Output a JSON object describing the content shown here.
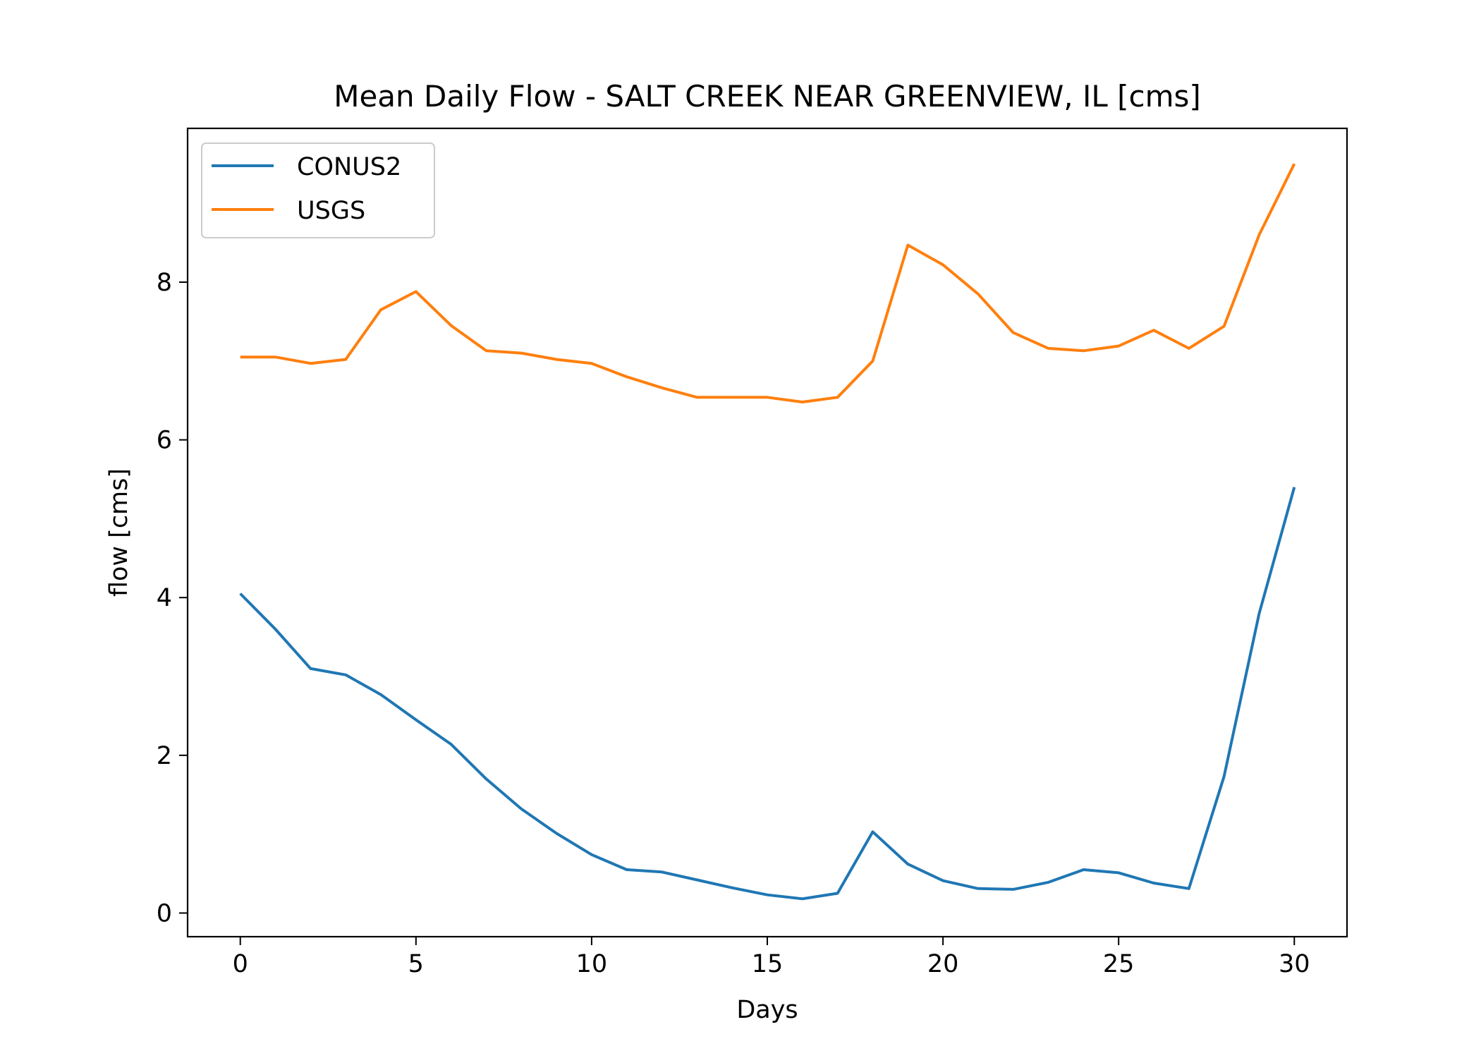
{
  "chart_data": {
    "type": "line",
    "title": "Mean Daily Flow - SALT CREEK NEAR GREENVIEW, IL [cms]",
    "xlabel": "Days",
    "ylabel": "flow [cms]",
    "xlim": [
      -1.5,
      31.5
    ],
    "ylim": [
      -0.3,
      9.95
    ],
    "xticks": [
      0,
      5,
      10,
      15,
      20,
      25,
      30
    ],
    "yticks": [
      0,
      2,
      4,
      6,
      8
    ],
    "grid": false,
    "legend_position": "upper-left",
    "x": [
      0,
      1,
      2,
      3,
      4,
      5,
      6,
      7,
      8,
      9,
      10,
      11,
      12,
      13,
      14,
      15,
      16,
      17,
      18,
      19,
      20,
      21,
      22,
      23,
      24,
      25,
      26,
      27,
      28,
      29,
      30
    ],
    "series": [
      {
        "name": "CONUS2",
        "color": "#1f77b4",
        "values": [
          4.05,
          3.6,
          3.1,
          3.02,
          2.77,
          2.45,
          2.14,
          1.7,
          1.32,
          1.01,
          0.74,
          0.55,
          0.52,
          0.42,
          0.32,
          0.23,
          0.18,
          0.25,
          1.03,
          0.62,
          0.41,
          0.31,
          0.3,
          0.39,
          0.55,
          0.51,
          0.38,
          0.31,
          1.73,
          3.8,
          5.4
        ]
      },
      {
        "name": "USGS",
        "color": "#ff7f0e",
        "values": [
          7.05,
          7.05,
          6.97,
          7.02,
          7.65,
          7.88,
          7.45,
          7.13,
          7.1,
          7.02,
          6.97,
          6.8,
          6.66,
          6.54,
          6.54,
          6.54,
          6.48,
          6.54,
          7.0,
          8.47,
          8.22,
          7.85,
          7.36,
          7.16,
          7.13,
          7.19,
          7.39,
          7.16,
          7.44,
          8.6,
          9.5
        ]
      }
    ]
  }
}
